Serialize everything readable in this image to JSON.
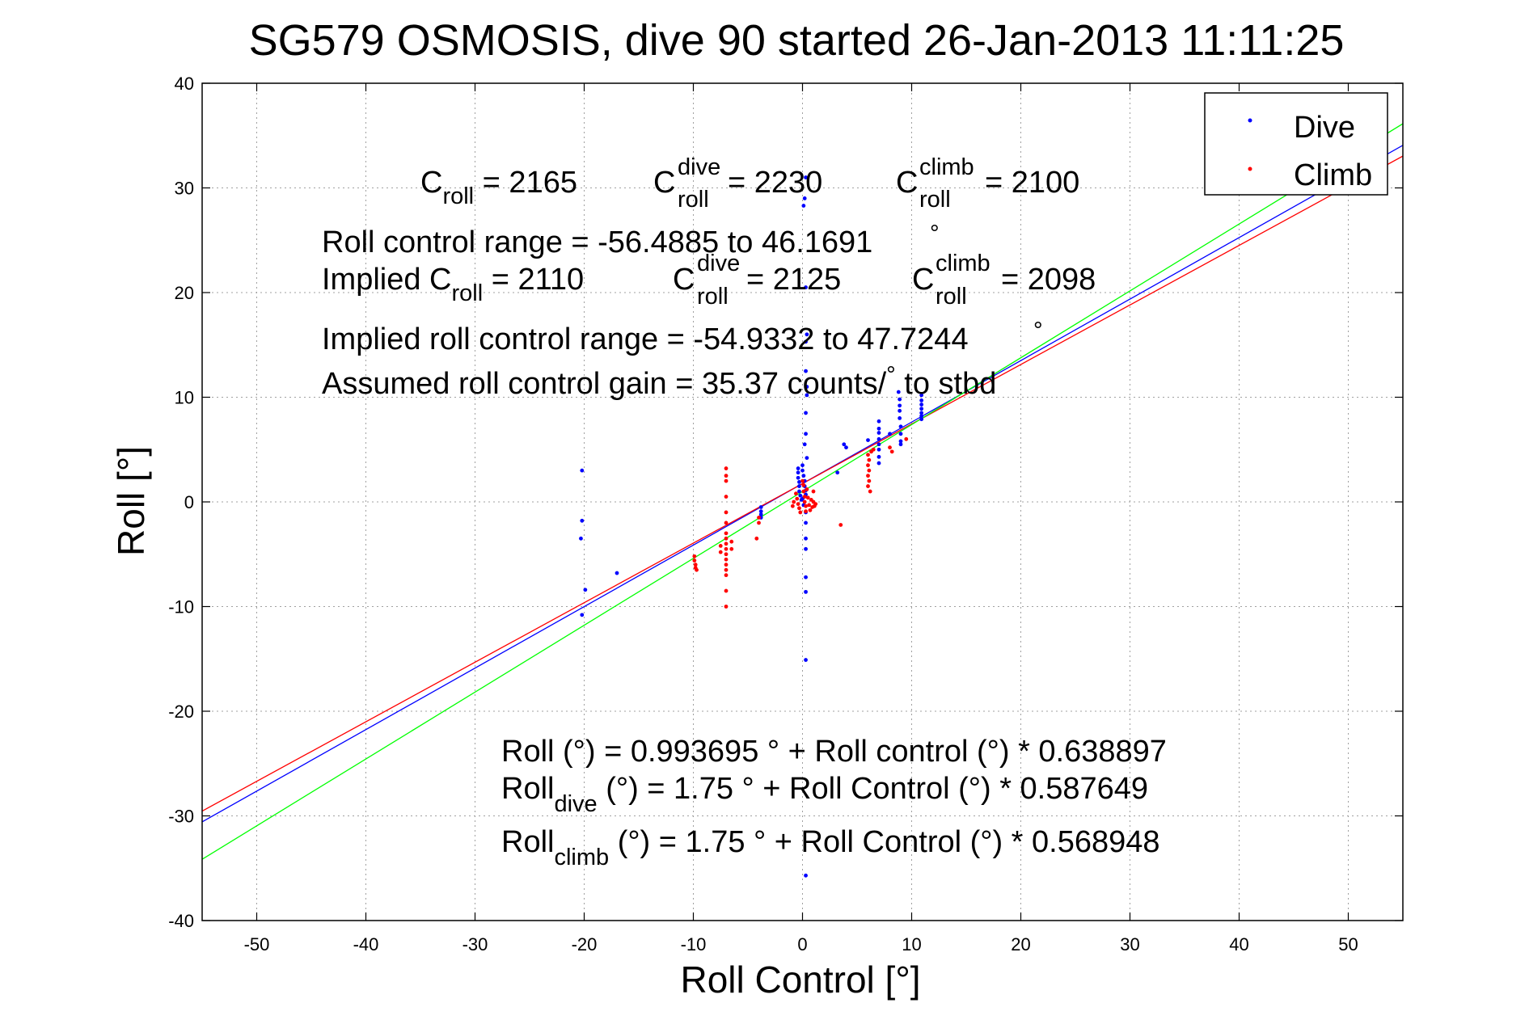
{
  "chart_data": {
    "type": "scatter",
    "title": "SG579 OSMOSIS, dive 90 started 26-Jan-2013 11:11:25",
    "xlabel": "Roll Control [°]",
    "ylabel": "Roll [°]",
    "xlim": [
      -55,
      55
    ],
    "ylim": [
      -40,
      40
    ],
    "xticks": [
      -50,
      -40,
      -30,
      -20,
      -10,
      0,
      10,
      20,
      30,
      40,
      50
    ],
    "yticks": [
      -40,
      -30,
      -20,
      -10,
      0,
      10,
      20,
      30,
      40
    ],
    "grid": true,
    "legend_position": "top-right",
    "series": [
      {
        "name": "Dive",
        "color": "#0000ff",
        "points": [
          [
            -20.2,
            3.0
          ],
          [
            -20.2,
            -1.8
          ],
          [
            -20.3,
            -3.5
          ],
          [
            -19.9,
            -8.4
          ],
          [
            -20.2,
            -10.8
          ],
          [
            -17.0,
            -6.8
          ],
          [
            -3.8,
            -0.5
          ],
          [
            -3.8,
            -0.9
          ],
          [
            -3.8,
            -1.2
          ],
          [
            -3.8,
            -1.5
          ],
          [
            -0.4,
            3.2
          ],
          [
            -0.4,
            2.8
          ],
          [
            -0.4,
            2.3
          ],
          [
            -0.3,
            1.9
          ],
          [
            -0.3,
            1.5
          ],
          [
            -0.3,
            1.0
          ],
          [
            -0.2,
            0.6
          ],
          [
            -0.1,
            0.2
          ],
          [
            0.0,
            3.5
          ],
          [
            0.0,
            3.0
          ],
          [
            0.1,
            2.5
          ],
          [
            0.2,
            2.0
          ],
          [
            0.2,
            1.5
          ],
          [
            0.3,
            1.1
          ],
          [
            0.3,
            0.7
          ],
          [
            0.0,
            0.3
          ],
          [
            0.1,
            -0.3
          ],
          [
            0.3,
            31.0
          ],
          [
            0.2,
            29.0
          ],
          [
            0.1,
            28.3
          ],
          [
            0.3,
            20.5
          ],
          [
            0.4,
            16.0
          ],
          [
            0.3,
            15.3
          ],
          [
            0.3,
            12.5
          ],
          [
            0.4,
            11.0
          ],
          [
            0.4,
            10.2
          ],
          [
            0.3,
            8.5
          ],
          [
            0.3,
            6.5
          ],
          [
            0.2,
            5.5
          ],
          [
            0.4,
            4.2
          ],
          [
            0.3,
            -1.0
          ],
          [
            0.3,
            -2.0
          ],
          [
            0.3,
            -3.5
          ],
          [
            0.3,
            -4.5
          ],
          [
            0.3,
            -7.2
          ],
          [
            0.3,
            -8.6
          ],
          [
            0.3,
            -15.1
          ],
          [
            0.3,
            -35.7
          ],
          [
            3.2,
            2.8
          ],
          [
            3.8,
            5.5
          ],
          [
            4.0,
            5.2
          ],
          [
            6.0,
            5.9
          ],
          [
            7.0,
            7.7
          ],
          [
            7.0,
            7.0
          ],
          [
            7.0,
            6.6
          ],
          [
            7.0,
            6.0
          ],
          [
            7.0,
            5.5
          ],
          [
            7.0,
            5.0
          ],
          [
            7.0,
            4.3
          ],
          [
            7.0,
            3.7
          ],
          [
            8.0,
            6.5
          ],
          [
            8.8,
            10.5
          ],
          [
            8.9,
            9.8
          ],
          [
            8.9,
            9.2
          ],
          [
            8.9,
            8.7
          ],
          [
            8.9,
            8.0
          ],
          [
            9.0,
            7.2
          ],
          [
            9.0,
            6.5
          ],
          [
            9.0,
            5.8
          ],
          [
            9.0,
            5.5
          ],
          [
            10.9,
            10.2
          ],
          [
            10.9,
            9.7
          ],
          [
            10.9,
            9.3
          ],
          [
            10.9,
            8.9
          ],
          [
            10.9,
            8.5
          ],
          [
            10.9,
            8.2
          ],
          [
            10.9,
            7.9
          ]
        ]
      },
      {
        "name": "Climb",
        "color": "#ff0000",
        "points": [
          [
            -9.9,
            -5.2
          ],
          [
            -9.9,
            -5.6
          ],
          [
            -9.8,
            -6.0
          ],
          [
            -9.8,
            -6.3
          ],
          [
            -9.7,
            -6.5
          ],
          [
            -7.0,
            3.2
          ],
          [
            -7.0,
            2.5
          ],
          [
            -7.0,
            2.0
          ],
          [
            -7.0,
            0.5
          ],
          [
            -7.0,
            -1.0
          ],
          [
            -7.0,
            -2.0
          ],
          [
            -7.0,
            -3.0
          ],
          [
            -7.0,
            -3.5
          ],
          [
            -7.0,
            -4.0
          ],
          [
            -7.0,
            -4.5
          ],
          [
            -7.0,
            -5.0
          ],
          [
            -7.0,
            -5.5
          ],
          [
            -7.0,
            -6.0
          ],
          [
            -7.0,
            -6.5
          ],
          [
            -7.0,
            -7.0
          ],
          [
            -7.0,
            -8.5
          ],
          [
            -7.0,
            -10.0
          ],
          [
            -7.5,
            -4.2
          ],
          [
            -7.5,
            -4.8
          ],
          [
            -6.5,
            -3.8
          ],
          [
            -6.5,
            -4.5
          ],
          [
            -4.0,
            -1.5
          ],
          [
            -4.0,
            -2.0
          ],
          [
            -4.2,
            -3.5
          ],
          [
            -0.6,
            0.8
          ],
          [
            -0.5,
            0.3
          ],
          [
            -0.4,
            -0.2
          ],
          [
            -0.3,
            -0.6
          ],
          [
            -0.2,
            -1.0
          ],
          [
            0.0,
            2.0
          ],
          [
            0.1,
            1.6
          ],
          [
            0.1,
            1.0
          ],
          [
            0.2,
            0.5
          ],
          [
            0.2,
            0.0
          ],
          [
            0.3,
            -0.4
          ],
          [
            0.3,
            -0.9
          ],
          [
            0.4,
            1.2
          ],
          [
            0.5,
            0.4
          ],
          [
            0.6,
            -0.3
          ],
          [
            0.7,
            -0.8
          ],
          [
            0.8,
            0.2
          ],
          [
            0.9,
            -0.5
          ],
          [
            1.0,
            1.0
          ],
          [
            1.0,
            0.0
          ],
          [
            1.1,
            -0.4
          ],
          [
            1.2,
            -0.2
          ],
          [
            -0.8,
            0.0
          ],
          [
            -0.9,
            -0.4
          ],
          [
            3.5,
            -2.2
          ],
          [
            6.0,
            4.5
          ],
          [
            6.1,
            4.0
          ],
          [
            6.0,
            3.5
          ],
          [
            6.1,
            3.0
          ],
          [
            6.0,
            2.5
          ],
          [
            6.1,
            2.0
          ],
          [
            6.0,
            1.5
          ],
          [
            6.2,
            1.0
          ],
          [
            6.5,
            5.0
          ],
          [
            6.3,
            4.8
          ],
          [
            8.0,
            5.2
          ],
          [
            8.2,
            4.8
          ],
          [
            9.5,
            6.0
          ]
        ]
      }
    ],
    "fit_lines": [
      {
        "color": "#0000ff",
        "intercept": 1.75,
        "slope": 0.587649
      },
      {
        "color": "#ff0000",
        "intercept": 1.75,
        "slope": 0.568948
      },
      {
        "color": "#00ff00",
        "intercept": 0.993695,
        "slope": 0.638897
      }
    ]
  },
  "annotations": {
    "c_roll_base": "C",
    "c_roll_sub": "roll",
    "c_roll_value": " = 2165",
    "c_dive_base": "C",
    "c_dive_sup": "dive",
    "c_dive_sub": "roll",
    "c_dive_value": " = 2230",
    "c_climb_base": "C",
    "c_climb_sup": "climb",
    "c_climb_sub": "roll",
    "c_climb_value": " = 2100",
    "range_line": "Roll control range = -56.4885 to 46.1691",
    "implied_prefix": "Implied C",
    "implied_sub": "roll",
    "implied_value": " = 2110",
    "implied_dive_base": "C",
    "implied_dive_sup": "dive",
    "implied_dive_sub": "roll",
    "implied_dive_value": " = 2125",
    "implied_climb_base": "C",
    "implied_climb_sup": "climb",
    "implied_climb_sub": "roll",
    "implied_climb_value": " = 2098",
    "implied_range_line": "Implied roll control range = -54.9332 to 47.7244",
    "degree_symbol": "°",
    "gain_prefix": "Assumed roll control gain = 35.37 counts/",
    "gain_suffix": " to stbd",
    "eq1": "Roll (°) = 0.993695 ° + Roll control (°) * 0.638897",
    "eq2_base": "Roll",
    "eq2_sub": "dive",
    "eq2_rest": " (°) = 1.75 ° + Roll Control (°) * 0.587649",
    "eq3_base": "Roll",
    "eq3_sub": "climb",
    "eq3_rest": " (°) = 1.75 ° + Roll Control (°) * 0.568948"
  }
}
